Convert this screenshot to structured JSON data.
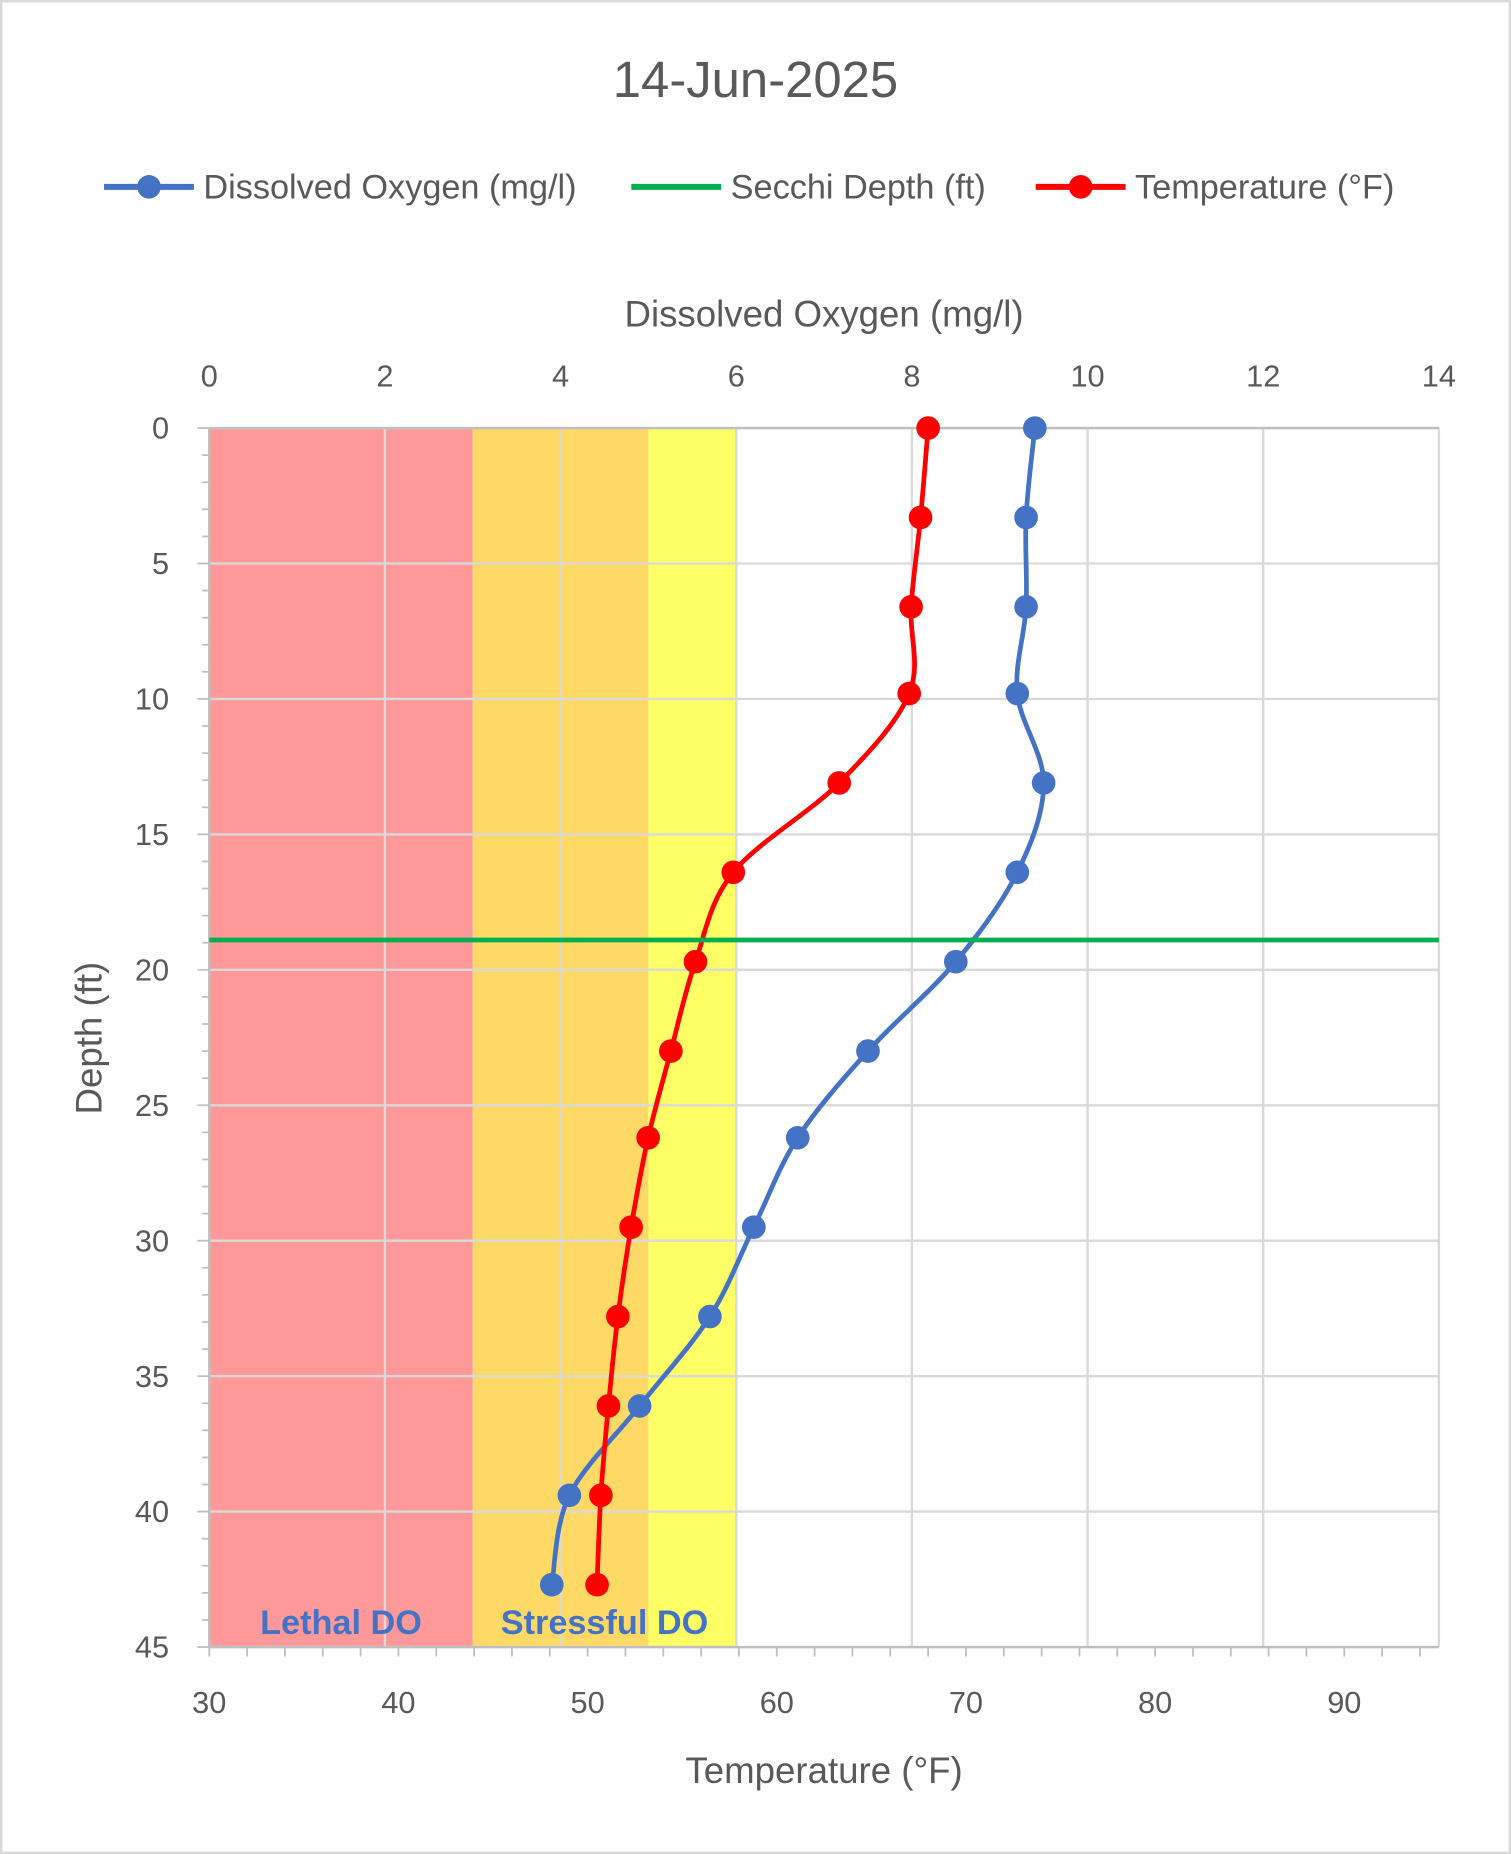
{
  "chart_data": {
    "type": "line",
    "title": "14-Jun-2025",
    "legend": {
      "placement": "top",
      "entries": [
        "Dissolved Oxygen (mg/l)",
        "Secchi Depth (ft)",
        "Temperature (°F)"
      ]
    },
    "axes": {
      "depth": {
        "label": "Depth (ft)",
        "range": [
          0,
          45
        ],
        "inverted": true,
        "ticks": [
          0,
          5,
          10,
          15,
          20,
          25,
          30,
          35,
          40,
          45
        ]
      },
      "do": {
        "label": "Dissolved Oxygen (mg/l)",
        "position": "top",
        "range": [
          0,
          14
        ],
        "ticks": [
          0,
          2,
          4,
          6,
          8,
          10,
          12,
          14
        ]
      },
      "temp": {
        "label": "Temperature (°F)",
        "position": "bottom",
        "range": [
          30,
          95
        ],
        "ticks": [
          30,
          40,
          50,
          60,
          70,
          80,
          90
        ]
      }
    },
    "grid": true,
    "series": [
      {
        "name": "Dissolved Oxygen (mg/l)",
        "color": "#4472C4",
        "axis": "do",
        "smooth": true,
        "depth": [
          0,
          3.3,
          6.6,
          9.8,
          13.1,
          16.4,
          19.7,
          23.0,
          26.2,
          29.5,
          32.8,
          36.1,
          39.4,
          42.7
        ],
        "values": [
          9.4,
          9.3,
          9.3,
          9.2,
          9.5,
          9.2,
          8.5,
          7.5,
          6.7,
          6.2,
          5.7,
          4.9,
          4.1,
          3.9
        ]
      },
      {
        "name": "Temperature (°F)",
        "color": "#FF0000",
        "axis": "temp",
        "smooth": true,
        "depth": [
          0,
          3.3,
          6.6,
          9.8,
          13.1,
          16.4,
          19.7,
          23.0,
          26.2,
          29.5,
          32.8,
          36.1,
          39.4,
          42.7
        ],
        "values": [
          68.0,
          67.6,
          67.1,
          67.0,
          63.3,
          57.7,
          55.7,
          54.4,
          53.2,
          52.3,
          51.6,
          51.1,
          50.7,
          50.5
        ]
      },
      {
        "name": "Secchi Depth (ft)",
        "color": "#00B050",
        "axis": "depth",
        "value": 18.9
      }
    ],
    "zones": [
      {
        "label": "Lethal DO",
        "from": 0,
        "to": 3,
        "color": "#FF9999"
      },
      {
        "label": "Stressful DO",
        "from": 3,
        "to": 5,
        "color": "#FFD966"
      },
      {
        "label": "",
        "from": 5,
        "to": 6,
        "color": "#FFFF66"
      }
    ]
  }
}
